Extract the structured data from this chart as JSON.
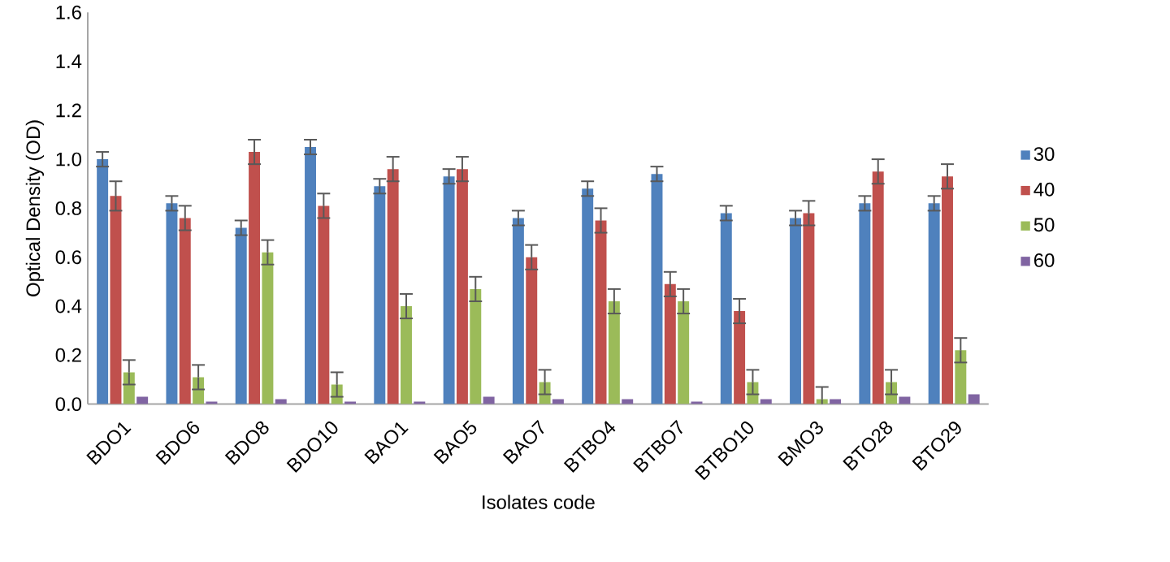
{
  "chart_data": {
    "type": "bar",
    "xlabel": "Isolates code",
    "ylabel": "Optical Density (OD)",
    "categories": [
      "BDO1",
      "BDO6",
      "BDO8",
      "BDO10",
      "BAO1",
      "BAO5",
      "BAO7",
      "BTBO4",
      "BTBO7",
      "BTBO10",
      "BMO3",
      "BTO28",
      "BTO29"
    ],
    "series": [
      {
        "name": "30",
        "color": "#4f81bd",
        "values": [
          1.0,
          0.82,
          0.72,
          1.05,
          0.89,
          0.93,
          0.76,
          0.88,
          0.94,
          0.78,
          0.76,
          0.82,
          0.82
        ],
        "errors": [
          0.03,
          0.03,
          0.03,
          0.03,
          0.03,
          0.03,
          0.03,
          0.03,
          0.03,
          0.03,
          0.03,
          0.03,
          0.03
        ]
      },
      {
        "name": "40",
        "color": "#c0504d",
        "values": [
          0.85,
          0.76,
          1.03,
          0.81,
          0.96,
          0.96,
          0.6,
          0.75,
          0.49,
          0.38,
          0.78,
          0.95,
          0.93
        ],
        "errors": [
          0.06,
          0.05,
          0.05,
          0.05,
          0.05,
          0.05,
          0.05,
          0.05,
          0.05,
          0.05,
          0.05,
          0.05,
          0.05
        ]
      },
      {
        "name": "50",
        "color": "#9bbb59",
        "values": [
          0.13,
          0.11,
          0.62,
          0.08,
          0.4,
          0.47,
          0.09,
          0.42,
          0.42,
          0.09,
          0.02,
          0.09,
          0.22
        ],
        "errors": [
          0.05,
          0.05,
          0.05,
          0.05,
          0.05,
          0.05,
          0.05,
          0.05,
          0.05,
          0.05,
          0.05,
          0.05,
          0.05
        ]
      },
      {
        "name": "60",
        "color": "#8064a2",
        "values": [
          0.03,
          0.01,
          0.02,
          0.01,
          0.01,
          0.03,
          0.02,
          0.02,
          0.01,
          0.02,
          0.02,
          0.03,
          0.04
        ]
      }
    ],
    "ylim": [
      0,
      1.6
    ],
    "yticks": [
      {
        "value": 0,
        "label": "0.0"
      },
      {
        "value": 0.2,
        "label": "0.2"
      },
      {
        "value": 0.4,
        "label": "0.4"
      },
      {
        "value": 0.6,
        "label": "0.6"
      },
      {
        "value": 0.8,
        "label": "0.8"
      },
      {
        "value": 1.0,
        "label": "1.0"
      },
      {
        "value": 1.2,
        "label": "1.2"
      },
      {
        "value": 1.4,
        "label": "1.4"
      },
      {
        "value": 1.6,
        "label": "1.6"
      }
    ],
    "grid": false,
    "legend": "right"
  }
}
